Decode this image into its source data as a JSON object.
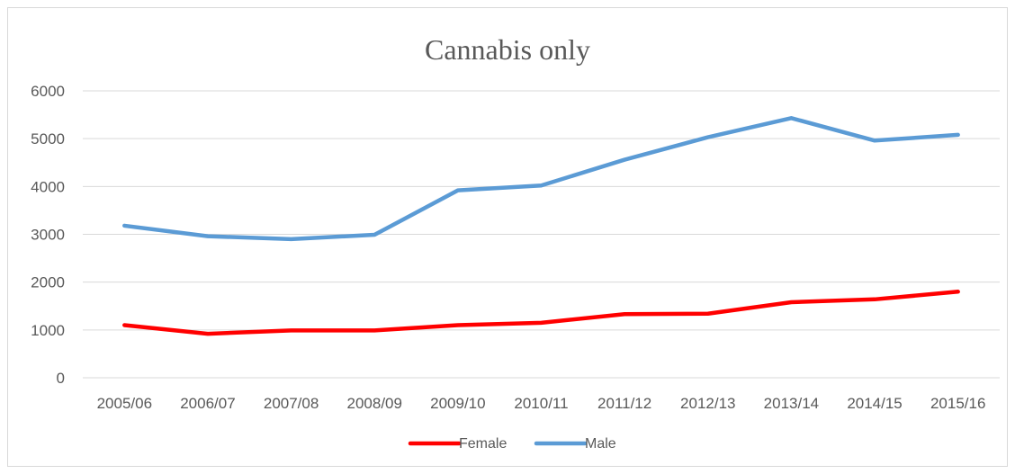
{
  "chart_data": {
    "type": "line",
    "title": "Cannabis only",
    "categories": [
      "2005/06",
      "2006/07",
      "2007/08",
      "2008/09",
      "2009/10",
      "2010/11",
      "2011/12",
      "2012/13",
      "2013/14",
      "2014/15",
      "2015/16"
    ],
    "series": [
      {
        "name": "Female",
        "color": "#ff0000",
        "values": [
          1100,
          920,
          990,
          990,
          1100,
          1150,
          1330,
          1340,
          1580,
          1640,
          1800
        ]
      },
      {
        "name": "Male",
        "color": "#5b9bd5",
        "values": [
          3180,
          2960,
          2900,
          2990,
          3920,
          4020,
          4560,
          5030,
          5430,
          4960,
          5080
        ]
      }
    ],
    "ylim": [
      0,
      6000
    ],
    "yticks": [
      0,
      1000,
      2000,
      3000,
      4000,
      5000,
      6000
    ],
    "grid": true,
    "gridColor": "#d9d9d9",
    "legend": "bottom"
  }
}
